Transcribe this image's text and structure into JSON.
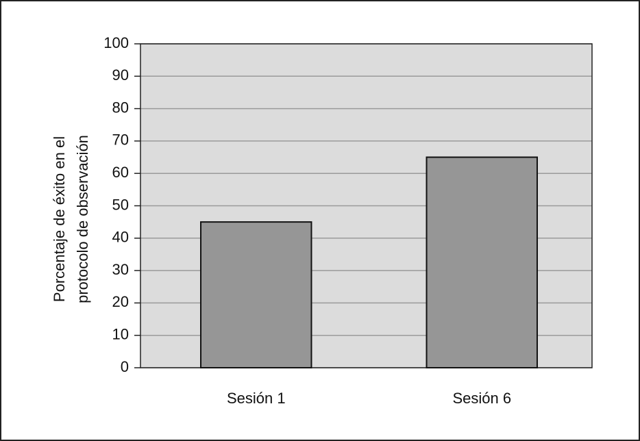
{
  "chart_data": {
    "type": "bar",
    "ylabel": [
      "Porcentaje de éxito en el",
      "protocolo de observación"
    ],
    "categories": [
      "Sesión 1",
      "Sesión 6"
    ],
    "values": [
      45,
      65
    ],
    "color": "#969696",
    "ylim": [
      0,
      100
    ],
    "yticks": [
      0,
      10,
      20,
      30,
      40,
      50,
      60,
      70,
      80,
      90,
      100
    ],
    "grid": true
  }
}
